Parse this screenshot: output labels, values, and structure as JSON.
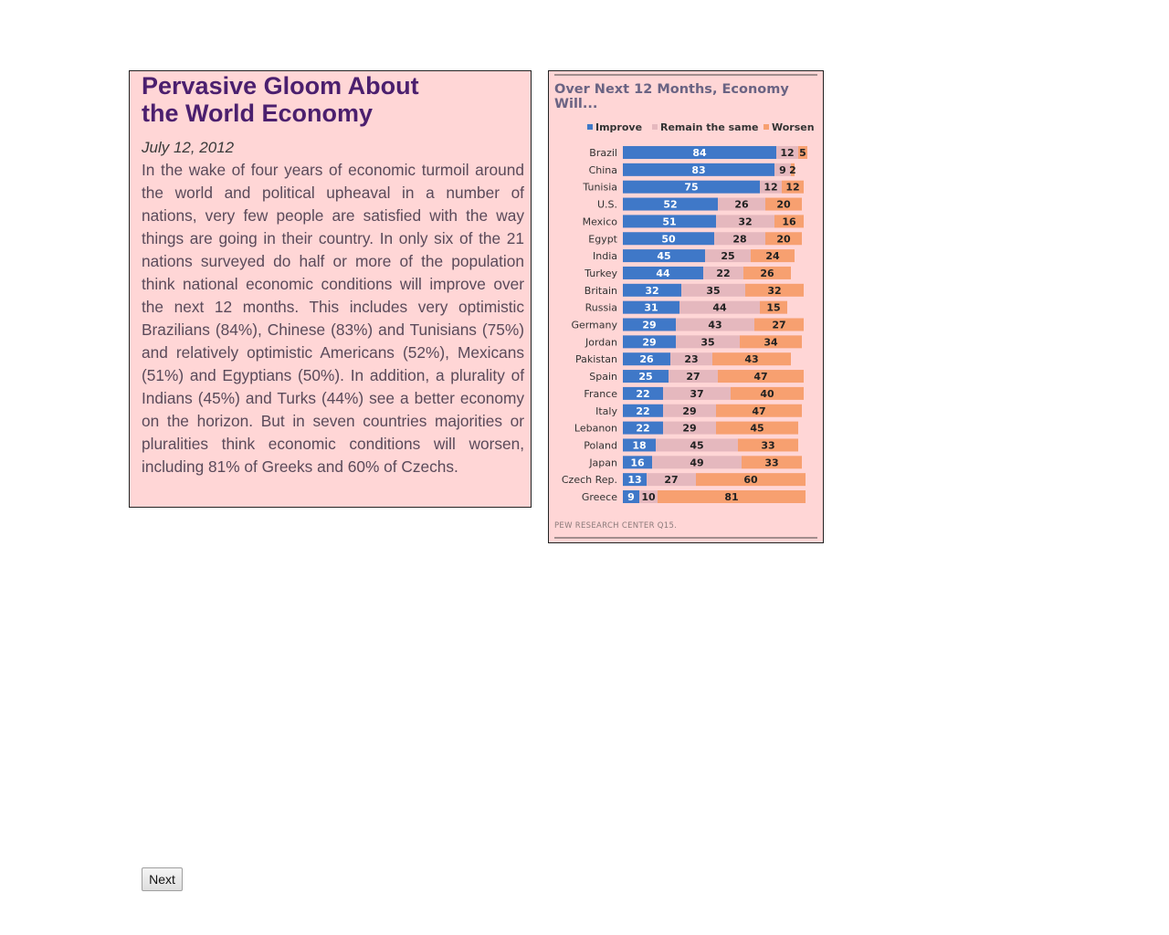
{
  "article": {
    "title_line1": "Pervasive Gloom About",
    "title_line2": "the World Economy",
    "date": "July 12, 2012",
    "body": "In the wake of four years of economic turmoil around the world and political upheaval in a number of nations, very few people are satisfied with the way things are going in their country. In only six of the 21 nations surveyed do half or more of the population think national economic conditions will improve over the next 12 months. This includes very optimistic Brazilians (84%), Chinese (83%) and Tunisians (75%) and relatively optimistic Americans (52%), Mexicans (51%) and Egyptians (50%). In addition, a plurality of Indians (45%) and Turks (44%) see a better economy on the horizon. But in seven countries majorities or pluralities think economic conditions will worsen, including 81% of Greeks and 60% of Czechs."
  },
  "chart_data": {
    "type": "bar",
    "stacked": true,
    "orientation": "horizontal",
    "title_line1": "Over Next 12 Months, Economy",
    "title_line2": "Will...",
    "source": "PEW RESEARCH CENTER Q15.",
    "legend_position": "top",
    "categories": [
      "Brazil",
      "China",
      "Tunisia",
      "U.S.",
      "Mexico",
      "Egypt",
      "India",
      "Turkey",
      "Britain",
      "Russia",
      "Germany",
      "Jordan",
      "Pakistan",
      "Spain",
      "France",
      "Italy",
      "Lebanon",
      "Poland",
      "Japan",
      "Czech Rep.",
      "Greece"
    ],
    "series": [
      {
        "name": "Improve",
        "color": "#3f78c8",
        "text_color": "#ffffff",
        "values": [
          84,
          83,
          75,
          52,
          51,
          50,
          45,
          44,
          32,
          31,
          29,
          29,
          26,
          25,
          22,
          22,
          22,
          18,
          16,
          13,
          9
        ]
      },
      {
        "name": "Remain the same",
        "color": "#e5b8be",
        "text_color": "#222222",
        "values": [
          12,
          9,
          12,
          26,
          32,
          28,
          25,
          22,
          35,
          44,
          43,
          35,
          23,
          27,
          37,
          29,
          29,
          45,
          49,
          27,
          10
        ]
      },
      {
        "name": "Worsen",
        "color": "#f7a070",
        "text_color": "#222222",
        "values": [
          5,
          2,
          12,
          20,
          16,
          20,
          24,
          26,
          32,
          15,
          27,
          34,
          43,
          47,
          40,
          47,
          45,
          33,
          33,
          60,
          81
        ]
      }
    ],
    "grid": false
  },
  "navigation": {
    "next_label": "Next"
  }
}
